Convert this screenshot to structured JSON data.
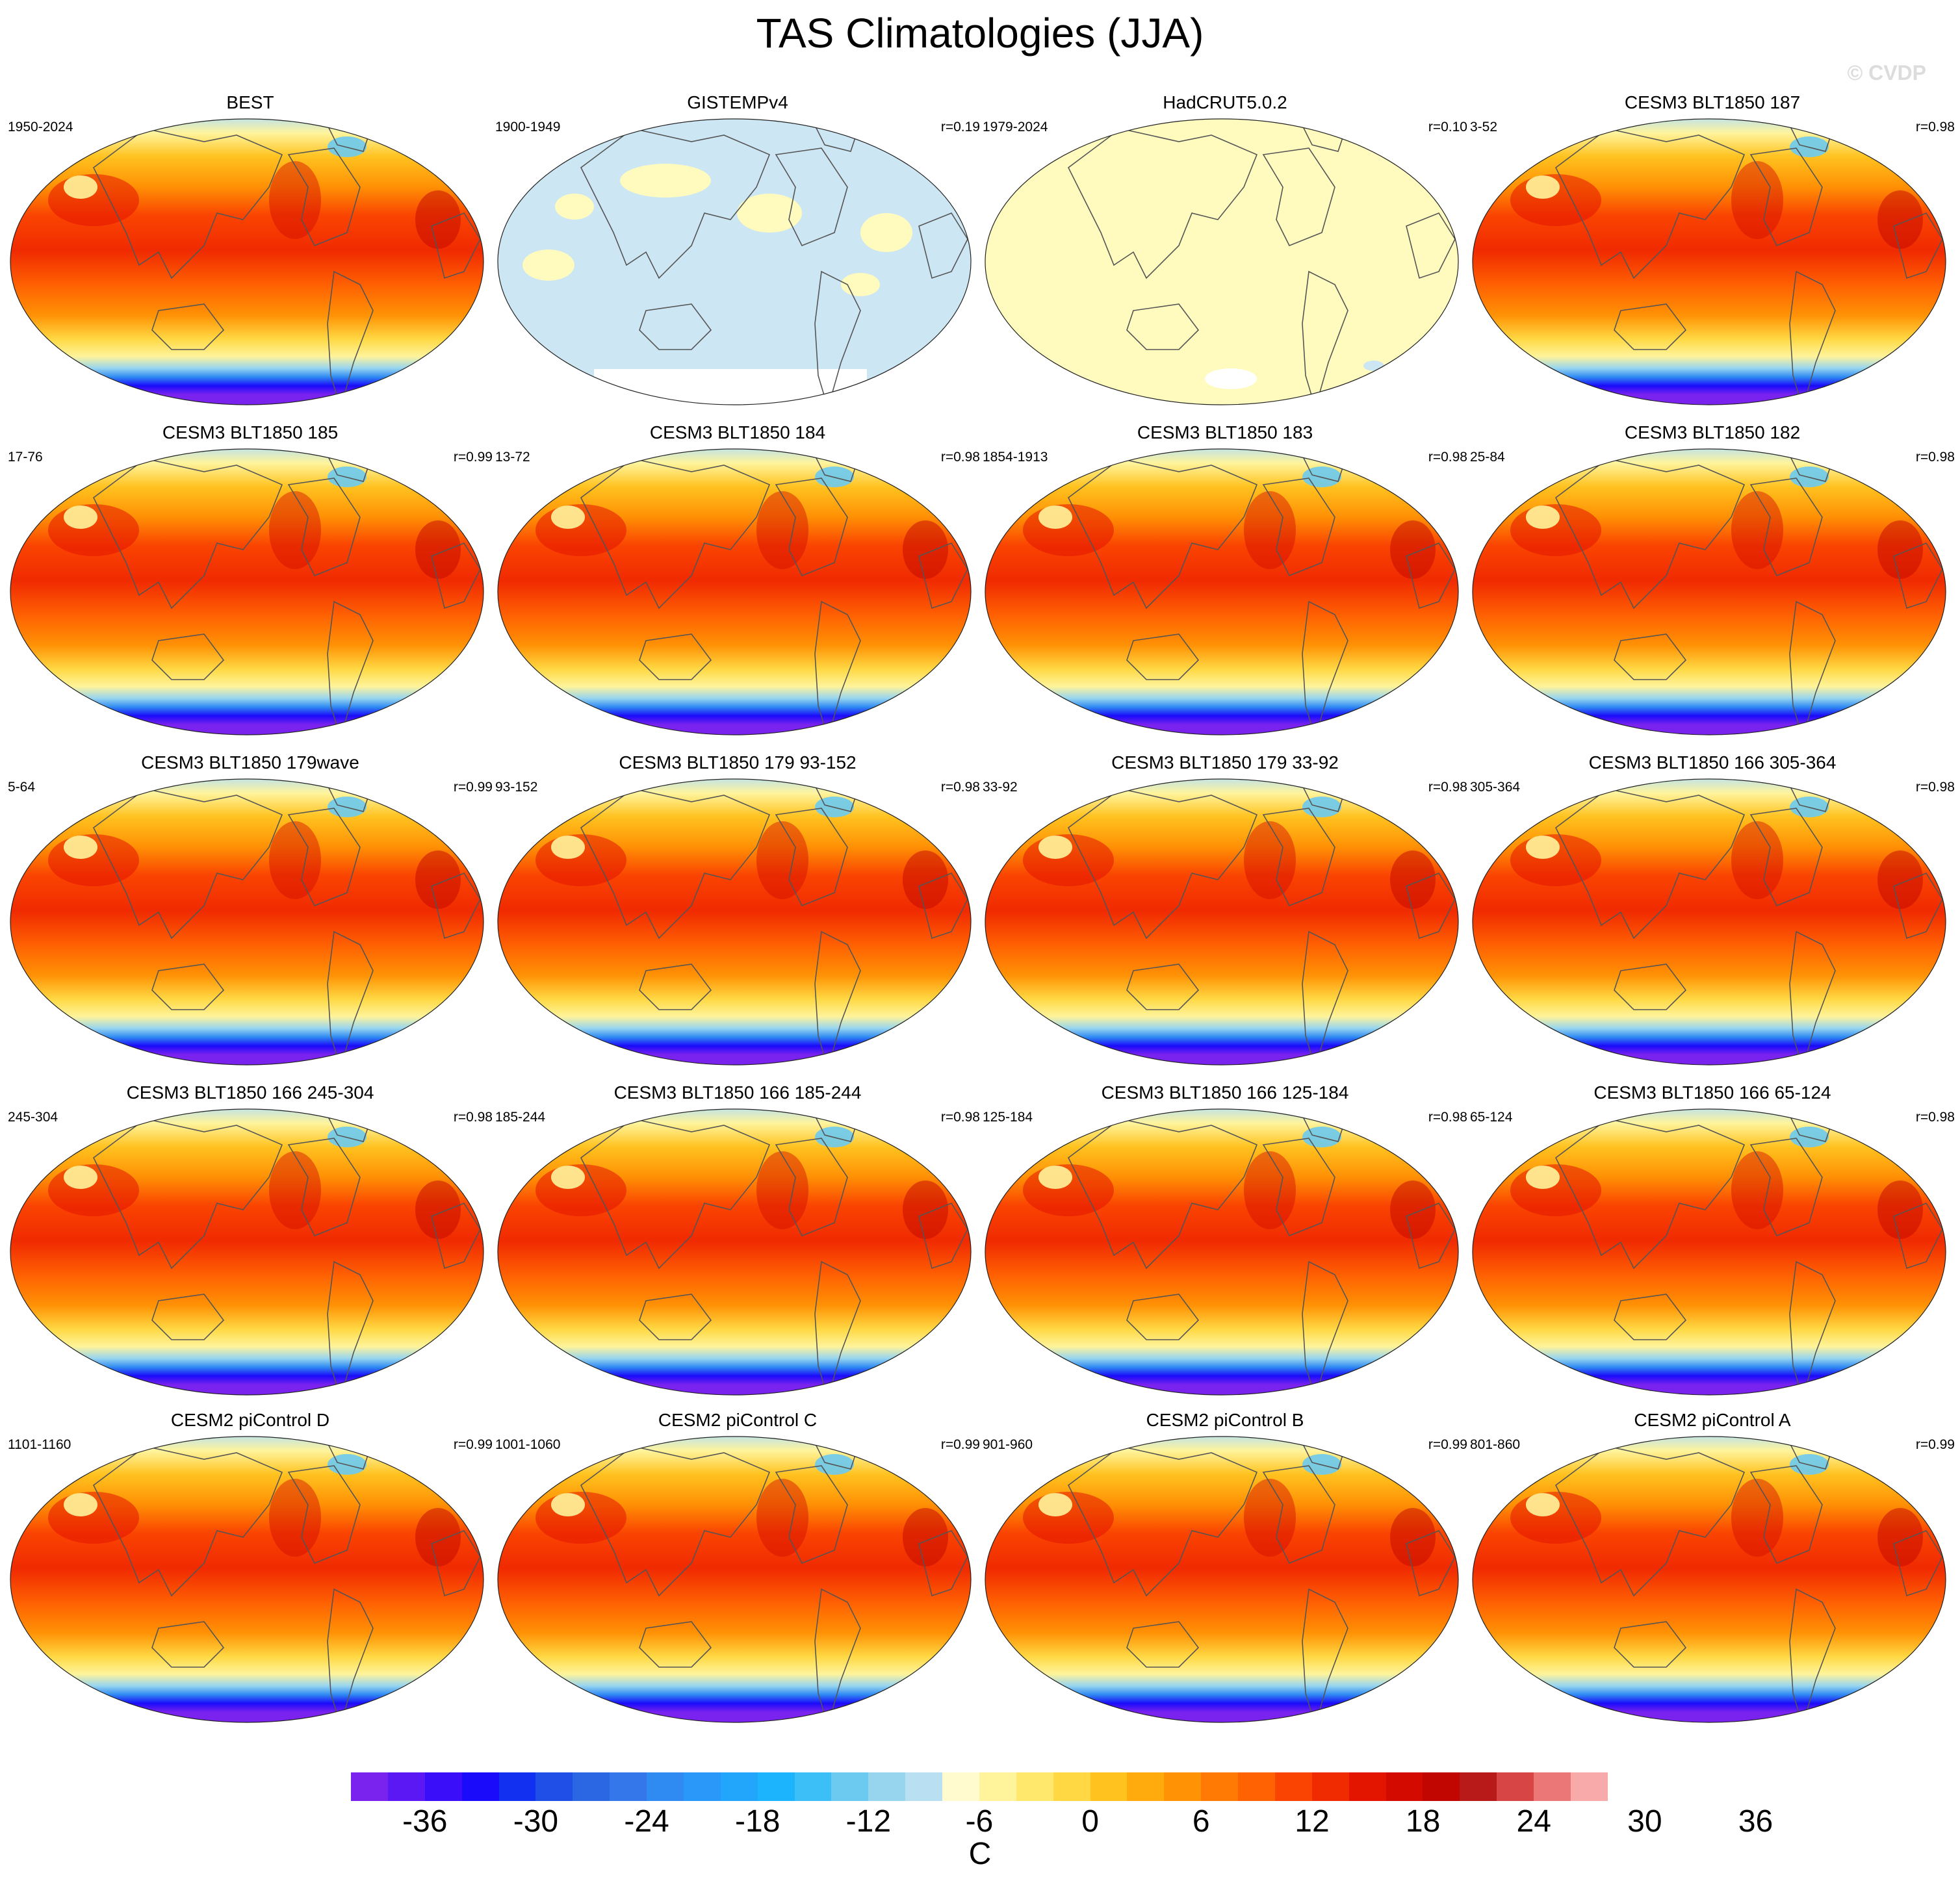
{
  "title": "TAS Climatologies (JJA)",
  "watermark": "© CVDP",
  "panels": [
    {
      "name": "BEST",
      "years": "1950-2024",
      "corr": "",
      "style": "warm"
    },
    {
      "name": "GISTEMPv4",
      "years": "1900-1949",
      "corr": "r=0.19",
      "style": "gis"
    },
    {
      "name": "HadCRUT5.0.2",
      "years": "1979-2024",
      "corr": "r=0.10",
      "style": "had"
    },
    {
      "name": "CESM3 BLT1850 187",
      "years": "3-52",
      "corr": "r=0.98",
      "style": "warm"
    },
    {
      "name": "CESM3 BLT1850 185",
      "years": "17-76",
      "corr": "r=0.99",
      "style": "warm"
    },
    {
      "name": "CESM3 BLT1850 184",
      "years": "13-72",
      "corr": "r=0.98",
      "style": "warm"
    },
    {
      "name": "CESM3 BLT1850 183",
      "years": "1854-1913",
      "corr": "r=0.98",
      "style": "warm"
    },
    {
      "name": "CESM3 BLT1850 182",
      "years": "25-84",
      "corr": "r=0.98",
      "style": "warm"
    },
    {
      "name": "CESM3 BLT1850 179wave",
      "years": "5-64",
      "corr": "r=0.99",
      "style": "warm"
    },
    {
      "name": "CESM3 BLT1850 179 93-152",
      "years": "93-152",
      "corr": "r=0.98",
      "style": "warm"
    },
    {
      "name": "CESM3 BLT1850 179 33-92",
      "years": "33-92",
      "corr": "r=0.98",
      "style": "warm"
    },
    {
      "name": "CESM3 BLT1850 166 305-364",
      "years": "305-364",
      "corr": "r=0.98",
      "style": "warm"
    },
    {
      "name": "CESM3 BLT1850 166 245-304",
      "years": "245-304",
      "corr": "r=0.98",
      "style": "warm"
    },
    {
      "name": "CESM3 BLT1850 166 185-244",
      "years": "185-244",
      "corr": "r=0.98",
      "style": "warm"
    },
    {
      "name": "CESM3 BLT1850 166 125-184",
      "years": "125-184",
      "corr": "r=0.98",
      "style": "warm"
    },
    {
      "name": "CESM3 BLT1850 166 65-124",
      "years": "65-124",
      "corr": "r=0.98",
      "style": "warm"
    },
    {
      "name": "CESM2 piControl D",
      "years": "1101-1160",
      "corr": "r=0.99",
      "style": "warm"
    },
    {
      "name": "CESM2 piControl C",
      "years": "1001-1060",
      "corr": "r=0.99",
      "style": "warm"
    },
    {
      "name": "CESM2 piControl B",
      "years": "901-960",
      "corr": "r=0.99",
      "style": "warm"
    },
    {
      "name": "CESM2 piControl A",
      "years": "801-860",
      "corr": "r=0.99",
      "style": "warm"
    }
  ],
  "colorbar": {
    "colors": [
      "#7a22ee",
      "#5b18f5",
      "#3a0ef8",
      "#1a0bfa",
      "#1230f0",
      "#1f4fe6",
      "#2b66e3",
      "#3377ea",
      "#2f8af2",
      "#2a98f8",
      "#22a6fb",
      "#1cb4fd",
      "#3cbff6",
      "#6ccaf1",
      "#97d5ef",
      "#b8e0f2",
      "#fffbcf",
      "#fff49b",
      "#ffe86b",
      "#ffd843",
      "#ffc21f",
      "#ffaa0d",
      "#ff9205",
      "#ff7a04",
      "#ff6202",
      "#fa4401",
      "#f02a01",
      "#e31400",
      "#d30a00",
      "#c10500",
      "#b81a1a",
      "#d84545",
      "#ec7777",
      "#f8a9a9"
    ],
    "ticks": [
      "-36",
      "-30",
      "-24",
      "-18",
      "-12",
      "-6",
      "0",
      "6",
      "12",
      "18",
      "24",
      "30",
      "36"
    ],
    "units": "C"
  }
}
